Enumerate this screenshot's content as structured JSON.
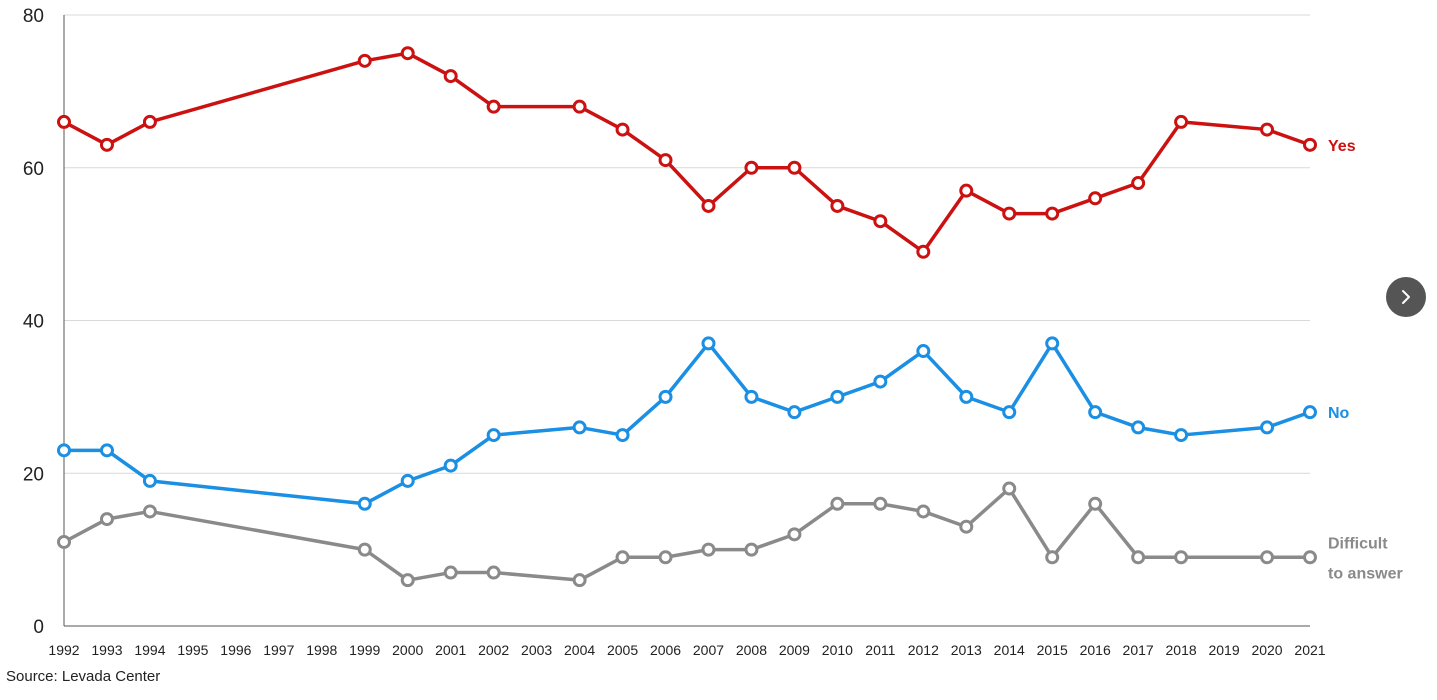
{
  "chart_data": {
    "type": "line",
    "x": [
      1992,
      1993,
      1994,
      1995,
      1996,
      1997,
      1998,
      1999,
      2000,
      2001,
      2002,
      2003,
      2004,
      2005,
      2006,
      2007,
      2008,
      2009,
      2010,
      2011,
      2012,
      2013,
      2014,
      2015,
      2016,
      2017,
      2018,
      2019,
      2020,
      2021
    ],
    "ylim": [
      0,
      80
    ],
    "yticks": [
      0,
      20,
      40,
      60,
      80
    ],
    "grid": true,
    "series": [
      {
        "name": "Yes",
        "color": "#cc1111",
        "points": [
          [
            1992,
            66
          ],
          [
            1993,
            63
          ],
          [
            1994,
            66
          ],
          [
            1999,
            74
          ],
          [
            2000,
            75
          ],
          [
            2001,
            72
          ],
          [
            2002,
            68
          ],
          [
            2004,
            68
          ],
          [
            2005,
            65
          ],
          [
            2006,
            61
          ],
          [
            2007,
            55
          ],
          [
            2008,
            60
          ],
          [
            2009,
            60
          ],
          [
            2010,
            55
          ],
          [
            2011,
            53
          ],
          [
            2012,
            49
          ],
          [
            2013,
            57
          ],
          [
            2014,
            54
          ],
          [
            2015,
            54
          ],
          [
            2016,
            56
          ],
          [
            2017,
            58
          ],
          [
            2018,
            66
          ],
          [
            2020,
            65
          ],
          [
            2021,
            63
          ]
        ]
      },
      {
        "name": "No",
        "color": "#1a8fe3",
        "points": [
          [
            1992,
            23
          ],
          [
            1993,
            23
          ],
          [
            1994,
            19
          ],
          [
            1999,
            16
          ],
          [
            2000,
            19
          ],
          [
            2001,
            21
          ],
          [
            2002,
            25
          ],
          [
            2004,
            26
          ],
          [
            2005,
            25
          ],
          [
            2006,
            30
          ],
          [
            2007,
            37
          ],
          [
            2008,
            30
          ],
          [
            2009,
            28
          ],
          [
            2010,
            30
          ],
          [
            2011,
            32
          ],
          [
            2012,
            36
          ],
          [
            2013,
            30
          ],
          [
            2014,
            28
          ],
          [
            2015,
            37
          ],
          [
            2016,
            28
          ],
          [
            2017,
            26
          ],
          [
            2018,
            25
          ],
          [
            2020,
            26
          ],
          [
            2021,
            28
          ]
        ]
      },
      {
        "name": "Difficult to answer",
        "label_lines": [
          "Difficult",
          "to answer"
        ],
        "color": "#8a8a8a",
        "points": [
          [
            1992,
            11
          ],
          [
            1993,
            14
          ],
          [
            1994,
            15
          ],
          [
            1999,
            10
          ],
          [
            2000,
            6
          ],
          [
            2001,
            7
          ],
          [
            2002,
            7
          ],
          [
            2004,
            6
          ],
          [
            2005,
            9
          ],
          [
            2006,
            9
          ],
          [
            2007,
            10
          ],
          [
            2008,
            10
          ],
          [
            2009,
            12
          ],
          [
            2010,
            16
          ],
          [
            2011,
            16
          ],
          [
            2012,
            15
          ],
          [
            2013,
            13
          ],
          [
            2014,
            18
          ],
          [
            2015,
            9
          ],
          [
            2016,
            16
          ],
          [
            2017,
            9
          ],
          [
            2018,
            9
          ],
          [
            2020,
            9
          ],
          [
            2021,
            9
          ]
        ]
      }
    ],
    "source": "Source: Levada Center"
  },
  "controls": {
    "next_icon": "chevron-right-icon"
  }
}
